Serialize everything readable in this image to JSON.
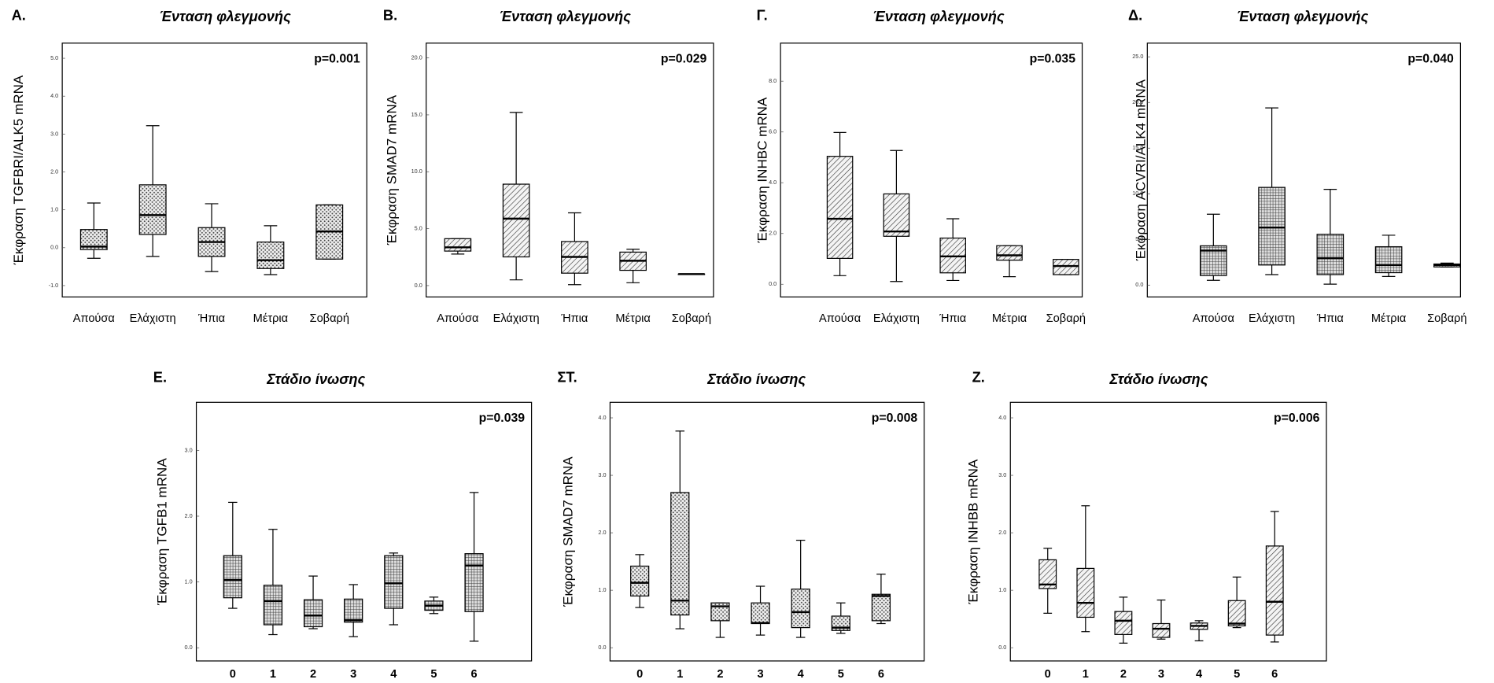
{
  "chart_data": [
    {
      "type": "box",
      "panel_label": "A.",
      "title": "Ένταση φλεγμονής",
      "annotation": "p=0.001",
      "ylabel": "Έκφραση TGFBRI/ALK5 mRNA",
      "fill_pattern": "dots",
      "categories": [
        "Απούσα",
        "Ελάχιστη",
        "Ήπια",
        "Μέτρια",
        "Σοβαρή"
      ],
      "ylim": [
        -1.3,
        5.4
      ],
      "yticks": [
        {
          "value": -1,
          "label": "-1.0"
        },
        {
          "value": 0,
          "label": "0.0"
        },
        {
          "value": 1,
          "label": "1.0"
        },
        {
          "value": 2,
          "label": "2.0"
        },
        {
          "value": 3,
          "label": "3.0"
        },
        {
          "value": 4,
          "label": "4.0"
        },
        {
          "value": 5,
          "label": "5.0"
        }
      ],
      "boxes": [
        {
          "low": -0.28,
          "q1": -0.05,
          "median": 0.03,
          "q3": 0.48,
          "high": 1.18
        },
        {
          "low": -0.23,
          "q1": 0.35,
          "median": 0.86,
          "q3": 1.66,
          "high": 3.22
        },
        {
          "low": -0.63,
          "q1": -0.23,
          "median": 0.15,
          "q3": 0.53,
          "high": 1.16
        },
        {
          "low": -0.71,
          "q1": -0.55,
          "median": -0.33,
          "q3": 0.15,
          "high": 0.58
        },
        {
          "low": -0.3,
          "q1": -0.3,
          "median": 0.43,
          "q3": 1.13,
          "high": 1.13
        }
      ]
    },
    {
      "type": "box",
      "panel_label": "B.",
      "title": "Ένταση φλεγμονής",
      "annotation": "p=0.029",
      "ylabel": "Έκφραση SMAD7 mRNA",
      "fill_pattern": "hatch",
      "categories": [
        "Απούσα",
        "Ελάχιστη",
        "Ήπια",
        "Μέτρια",
        "Σοβαρή"
      ],
      "ylim": [
        -1,
        21.3
      ],
      "yticks": [
        {
          "value": 0,
          "label": "0.0"
        },
        {
          "value": 5,
          "label": "5.0"
        },
        {
          "value": 10,
          "label": "10.0"
        },
        {
          "value": 15,
          "label": "15.0"
        },
        {
          "value": 20,
          "label": "20.0"
        }
      ],
      "boxes": [
        {
          "low": 2.77,
          "q1": 3.03,
          "median": 3.36,
          "q3": 4.12,
          "high": 4.12
        },
        {
          "low": 0.5,
          "q1": 2.52,
          "median": 5.88,
          "q3": 8.91,
          "high": 15.21
        },
        {
          "low": 0.08,
          "q1": 1.09,
          "median": 2.52,
          "q3": 3.87,
          "high": 6.39
        },
        {
          "low": 0.25,
          "q1": 1.34,
          "median": 2.18,
          "q3": 2.94,
          "high": 3.19
        },
        {
          "low": 1.01,
          "q1": 1.01,
          "median": 1.01,
          "q3": 1.01,
          "high": 1.01
        }
      ]
    },
    {
      "type": "box",
      "panel_label": "Γ.",
      "title": "Ένταση φλεγμονής",
      "annotation": "p=0.035",
      "ylabel": "Έκφραση INHBC mRNA",
      "fill_pattern": "hatch",
      "categories": [
        "Απούσα",
        "Ελάχιστη",
        "Ήπια",
        "Μέτρια",
        "Σοβαρή"
      ],
      "ylim": [
        -0.5,
        9.5
      ],
      "yticks": [
        {
          "value": 0,
          "label": "0.0"
        },
        {
          "value": 2,
          "label": "2.0"
        },
        {
          "value": 4,
          "label": "4.0"
        },
        {
          "value": 6,
          "label": "6.0"
        },
        {
          "value": 8,
          "label": "8.0"
        }
      ],
      "boxes": [
        {
          "low": 0.34,
          "q1": 1.02,
          "median": 2.58,
          "q3": 5.04,
          "high": 5.98
        },
        {
          "low": 0.11,
          "q1": 1.89,
          "median": 2.08,
          "q3": 3.56,
          "high": 5.27
        },
        {
          "low": 0.15,
          "q1": 0.45,
          "median": 1.1,
          "q3": 1.82,
          "high": 2.58
        },
        {
          "low": 0.3,
          "q1": 0.95,
          "median": 1.14,
          "q3": 1.52,
          "high": 1.52
        },
        {
          "low": 0.38,
          "q1": 0.38,
          "median": 0.72,
          "q3": 0.98,
          "high": 0.98
        }
      ]
    },
    {
      "type": "box",
      "panel_label": "Δ.",
      "title": "Ένταση φλεγμονής",
      "annotation": "p=0.040",
      "ylabel": "Έκφραση ACVRI/ALK4 mRNA",
      "fill_pattern": "grid",
      "categories": [
        "Απούσα",
        "Ελάχιστη",
        "Ήπια",
        "Μέτρια",
        "Σοβαρή"
      ],
      "ylim": [
        -1.3,
        26.5
      ],
      "yticks": [
        {
          "value": 0,
          "label": "0.0"
        },
        {
          "value": 5,
          "label": "5.0"
        },
        {
          "value": 10,
          "label": "10.0"
        },
        {
          "value": 15,
          "label": "15.0"
        },
        {
          "value": 20,
          "label": "20.0"
        },
        {
          "value": 25,
          "label": "25.0"
        }
      ],
      "boxes": [
        {
          "low": 0.52,
          "q1": 1.05,
          "median": 3.78,
          "q3": 4.3,
          "high": 7.76
        },
        {
          "low": 1.15,
          "q1": 2.2,
          "median": 6.3,
          "q3": 10.7,
          "high": 19.41
        },
        {
          "low": 0.1,
          "q1": 1.15,
          "median": 2.94,
          "q3": 5.56,
          "high": 10.49
        },
        {
          "low": 0.94,
          "q1": 1.36,
          "median": 2.2,
          "q3": 4.2,
          "high": 5.46
        },
        {
          "low": 1.99,
          "q1": 1.99,
          "median": 2.2,
          "q3": 2.31,
          "high": 2.41
        }
      ]
    },
    {
      "type": "box",
      "panel_label": "E.",
      "title": "Στάδιο ίνωσης",
      "annotation": "p=0.039",
      "ylabel": "Έκφραση TGFB1 mRNA",
      "fill_pattern": "grid",
      "categories": [
        "0",
        "1",
        "2",
        "3",
        "4",
        "5",
        "6"
      ],
      "ylim": [
        -0.2,
        3.73
      ],
      "yticks": [
        {
          "value": 0,
          "label": "0.0"
        },
        {
          "value": 1,
          "label": "1.0"
        },
        {
          "value": 2,
          "label": "2.0"
        },
        {
          "value": 3,
          "label": "3.0"
        }
      ],
      "boxes": [
        {
          "low": 0.6,
          "q1": 0.76,
          "median": 1.03,
          "q3": 1.4,
          "high": 2.21
        },
        {
          "low": 0.2,
          "q1": 0.35,
          "median": 0.71,
          "q3": 0.95,
          "high": 1.8
        },
        {
          "low": 0.29,
          "q1": 0.32,
          "median": 0.49,
          "q3": 0.73,
          "high": 1.09
        },
        {
          "low": 0.17,
          "q1": 0.39,
          "median": 0.42,
          "q3": 0.74,
          "high": 0.96
        },
        {
          "low": 0.35,
          "q1": 0.6,
          "median": 0.98,
          "q3": 1.4,
          "high": 1.44
        },
        {
          "low": 0.52,
          "q1": 0.57,
          "median": 0.64,
          "q3": 0.71,
          "high": 0.77
        },
        {
          "low": 0.1,
          "q1": 0.55,
          "median": 1.25,
          "q3": 1.43,
          "high": 2.36
        }
      ]
    },
    {
      "type": "box",
      "panel_label": "ΣΤ.",
      "title": "Στάδιο ίνωσης",
      "annotation": "p=0.008",
      "ylabel": "Έκφραση SMAD7 mRNA",
      "fill_pattern": "dots",
      "categories": [
        "0",
        "1",
        "2",
        "3",
        "4",
        "5",
        "6"
      ],
      "ylim": [
        -0.23,
        4.27
      ],
      "yticks": [
        {
          "value": 0,
          "label": "0.0"
        },
        {
          "value": 1,
          "label": "1.0"
        },
        {
          "value": 2,
          "label": "2.0"
        },
        {
          "value": 3,
          "label": "3.0"
        },
        {
          "value": 4,
          "label": "4.0"
        }
      ],
      "boxes": [
        {
          "low": 0.7,
          "q1": 0.9,
          "median": 1.13,
          "q3": 1.42,
          "high": 1.62
        },
        {
          "low": 0.33,
          "q1": 0.57,
          "median": 0.82,
          "q3": 2.7,
          "high": 3.77
        },
        {
          "low": 0.18,
          "q1": 0.47,
          "median": 0.72,
          "q3": 0.78,
          "high": 0.78
        },
        {
          "low": 0.22,
          "q1": 0.42,
          "median": 0.43,
          "q3": 0.78,
          "high": 1.07
        },
        {
          "low": 0.18,
          "q1": 0.35,
          "median": 0.62,
          "q3": 1.02,
          "high": 1.87
        },
        {
          "low": 0.25,
          "q1": 0.3,
          "median": 0.35,
          "q3": 0.55,
          "high": 0.78
        },
        {
          "low": 0.42,
          "q1": 0.47,
          "median": 0.9,
          "q3": 0.93,
          "high": 1.28
        }
      ]
    },
    {
      "type": "box",
      "panel_label": "Z.",
      "title": "Στάδιο ίνωσης",
      "annotation": "p=0.006",
      "ylabel": "Έκφραση INHBB mRNA",
      "fill_pattern": "hatch",
      "categories": [
        "0",
        "1",
        "2",
        "3",
        "4",
        "5",
        "6"
      ],
      "ylim": [
        -0.23,
        4.27
      ],
      "yticks": [
        {
          "value": 0,
          "label": "0.0"
        },
        {
          "value": 1,
          "label": "1.0"
        },
        {
          "value": 2,
          "label": "2.0"
        },
        {
          "value": 3,
          "label": "3.0"
        },
        {
          "value": 4,
          "label": "4.0"
        }
      ],
      "boxes": [
        {
          "low": 0.6,
          "q1": 1.03,
          "median": 1.1,
          "q3": 1.53,
          "high": 1.73
        },
        {
          "low": 0.28,
          "q1": 0.53,
          "median": 0.78,
          "q3": 1.38,
          "high": 2.47
        },
        {
          "low": 0.08,
          "q1": 0.23,
          "median": 0.47,
          "q3": 0.63,
          "high": 0.88
        },
        {
          "low": 0.15,
          "q1": 0.18,
          "median": 0.33,
          "q3": 0.42,
          "high": 0.83
        },
        {
          "low": 0.12,
          "q1": 0.32,
          "median": 0.38,
          "q3": 0.43,
          "high": 0.47
        },
        {
          "low": 0.35,
          "q1": 0.38,
          "median": 0.42,
          "q3": 0.82,
          "high": 1.23
        },
        {
          "low": 0.1,
          "q1": 0.22,
          "median": 0.8,
          "q3": 1.77,
          "high": 2.37
        }
      ]
    }
  ]
}
